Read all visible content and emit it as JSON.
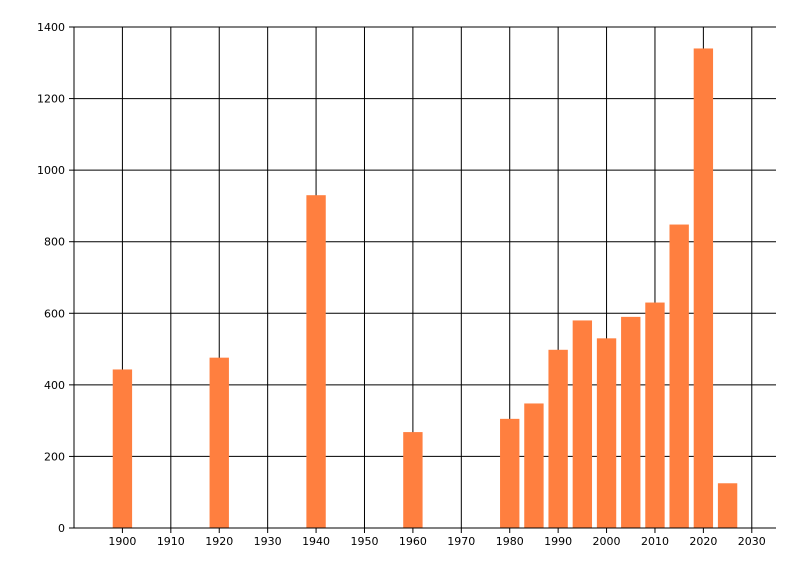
{
  "chart_data": {
    "type": "bar",
    "title": "",
    "xlabel": "",
    "ylabel": "",
    "x_ticks": [
      1900,
      1910,
      1920,
      1930,
      1940,
      1950,
      1960,
      1970,
      1980,
      1990,
      2000,
      2010,
      2020,
      2030
    ],
    "y_ticks": [
      0,
      200,
      400,
      600,
      800,
      1000,
      1200,
      1400
    ],
    "xlim": [
      1890,
      2035
    ],
    "ylim": [
      0,
      1400
    ],
    "grid": true,
    "bar_color": "#FF7F3F",
    "bars": [
      {
        "x": 1900,
        "value": 443
      },
      {
        "x": 1920,
        "value": 476
      },
      {
        "x": 1940,
        "value": 930
      },
      {
        "x": 1960,
        "value": 268
      },
      {
        "x": 1980,
        "value": 305
      },
      {
        "x": 1985,
        "value": 348
      },
      {
        "x": 1990,
        "value": 498
      },
      {
        "x": 1995,
        "value": 580
      },
      {
        "x": 2000,
        "value": 530
      },
      {
        "x": 2005,
        "value": 590
      },
      {
        "x": 2010,
        "value": 630
      },
      {
        "x": 2015,
        "value": 848
      },
      {
        "x": 2020,
        "value": 1340
      },
      {
        "x": 2025,
        "value": 125
      }
    ]
  }
}
